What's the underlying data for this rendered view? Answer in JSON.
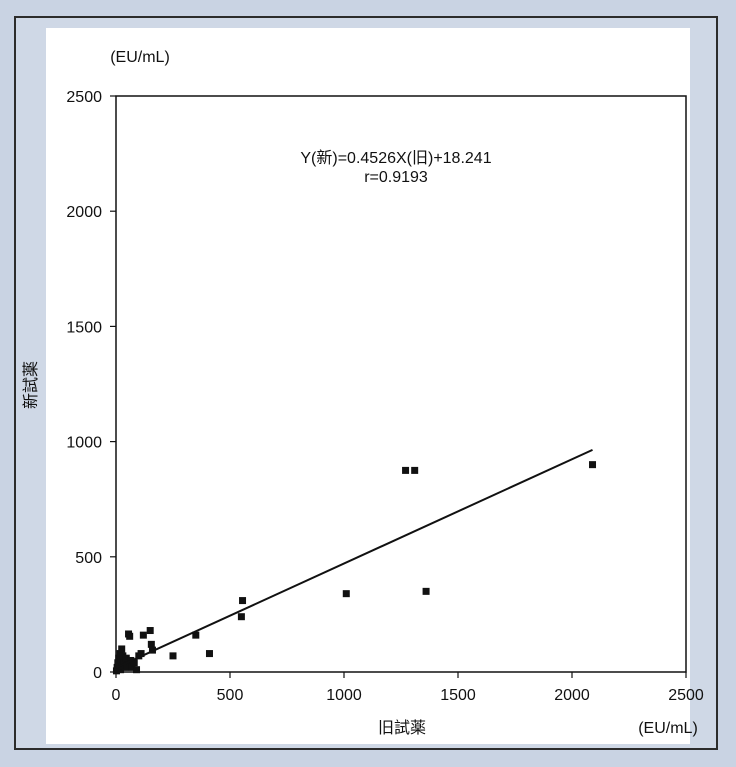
{
  "chart_data": {
    "type": "scatter",
    "xlabel": "旧試薬",
    "ylabel": "新試薬",
    "x_unit": "(EU/mL)",
    "y_unit": "(EU/mL)",
    "xlim": [
      0,
      2500
    ],
    "ylim": [
      0,
      2500
    ],
    "xticks": [
      0,
      500,
      1000,
      1500,
      2000,
      2500
    ],
    "yticks": [
      0,
      500,
      1000,
      1500,
      2000,
      2500
    ],
    "grid": false,
    "annotation": {
      "equation": "Y(新)=0.4526X(旧)+18.241",
      "r": "r=0.9193"
    },
    "regression": {
      "slope": 0.4526,
      "intercept": 18.241
    },
    "points": [
      {
        "x": 2,
        "y": 5
      },
      {
        "x": 5,
        "y": 20
      },
      {
        "x": 8,
        "y": 40
      },
      {
        "x": 10,
        "y": 15
      },
      {
        "x": 12,
        "y": 60
      },
      {
        "x": 15,
        "y": 30
      },
      {
        "x": 18,
        "y": 80
      },
      {
        "x": 20,
        "y": 10
      },
      {
        "x": 22,
        "y": 50
      },
      {
        "x": 25,
        "y": 100
      },
      {
        "x": 28,
        "y": 25
      },
      {
        "x": 30,
        "y": 70
      },
      {
        "x": 35,
        "y": 40
      },
      {
        "x": 40,
        "y": 20
      },
      {
        "x": 45,
        "y": 60
      },
      {
        "x": 50,
        "y": 30
      },
      {
        "x": 55,
        "y": 165
      },
      {
        "x": 60,
        "y": 155
      },
      {
        "x": 65,
        "y": 50
      },
      {
        "x": 70,
        "y": 20
      },
      {
        "x": 80,
        "y": 40
      },
      {
        "x": 90,
        "y": 10
      },
      {
        "x": 100,
        "y": 70
      },
      {
        "x": 110,
        "y": 80
      },
      {
        "x": 120,
        "y": 160
      },
      {
        "x": 150,
        "y": 180
      },
      {
        "x": 155,
        "y": 120
      },
      {
        "x": 160,
        "y": 95
      },
      {
        "x": 250,
        "y": 70
      },
      {
        "x": 350,
        "y": 160
      },
      {
        "x": 410,
        "y": 80
      },
      {
        "x": 550,
        "y": 240
      },
      {
        "x": 555,
        "y": 310
      },
      {
        "x": 1010,
        "y": 340
      },
      {
        "x": 1270,
        "y": 875
      },
      {
        "x": 1310,
        "y": 875
      },
      {
        "x": 1360,
        "y": 350
      },
      {
        "x": 2090,
        "y": 900
      }
    ]
  }
}
